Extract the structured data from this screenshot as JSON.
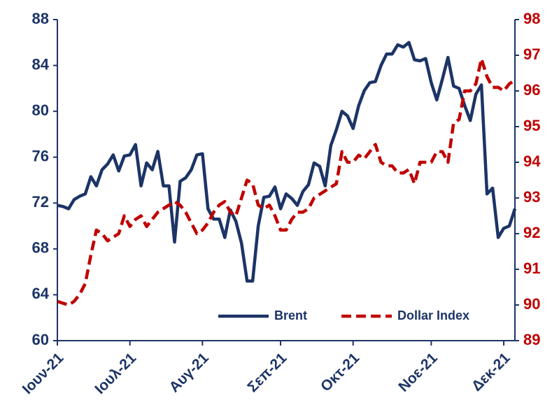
{
  "chart_data": {
    "type": "line",
    "categories": [
      "Ιουν-21",
      null,
      null,
      null,
      null,
      null,
      null,
      null,
      null,
      null,
      null,
      null,
      null,
      "Ιουλ-21",
      null,
      null,
      null,
      null,
      null,
      null,
      null,
      null,
      null,
      null,
      null,
      null,
      "Αυγ-21",
      null,
      null,
      null,
      null,
      null,
      null,
      null,
      null,
      null,
      null,
      null,
      null,
      null,
      "Σεπ-21",
      null,
      null,
      null,
      null,
      null,
      null,
      null,
      null,
      null,
      null,
      null,
      null,
      "Οκτ-21",
      null,
      null,
      null,
      null,
      null,
      null,
      null,
      null,
      null,
      null,
      null,
      null,
      null,
      "Νοε-21",
      null,
      null,
      null,
      null,
      null,
      null,
      null,
      null,
      null,
      null,
      null,
      null,
      "Δεκ-21",
      null,
      null
    ],
    "series": [
      {
        "name": "Brent",
        "color": "#1c3466",
        "dash": false,
        "values": [
          71.8,
          71.7,
          71.5,
          72.3,
          72.6,
          72.8,
          74.3,
          73.5,
          74.9,
          75.4,
          76.2,
          74.8,
          76.1,
          76.2,
          77.1,
          73.5,
          75.5,
          74.9,
          76.5,
          73.5,
          73.5,
          68.6,
          73.9,
          74.2,
          74.9,
          76.2,
          76.3,
          71.5,
          70.6,
          70.6,
          69.0,
          71.4,
          70.4,
          68.5,
          65.2,
          65.2,
          70.0,
          72.5,
          72.6,
          73.4,
          71.5,
          72.8,
          72.4,
          71.8,
          73,
          73.6,
          75.5,
          75.2,
          73.5,
          77,
          78.4,
          80,
          79.6,
          78.5,
          80.5,
          81.8,
          82.5,
          82.6,
          84,
          85,
          85,
          85.8,
          85.6,
          86,
          84.5,
          84.4,
          84.6,
          82.5,
          81,
          82.8,
          84.7,
          82.2,
          82,
          80.5,
          79.2,
          81.5,
          82.3,
          72.8,
          73.3,
          69,
          69.8,
          70,
          71.5
        ]
      },
      {
        "name": "Dollar Index",
        "color": "#c00000",
        "dash": true,
        "axis": "y2",
        "values": [
          90.1,
          90.05,
          90,
          90.1,
          90.3,
          90.6,
          91.4,
          92.1,
          92,
          91.8,
          91.9,
          92,
          92.5,
          92.2,
          92.4,
          92.5,
          92.2,
          92.4,
          92.6,
          92.7,
          92.8,
          92.9,
          92.8,
          92.6,
          92.3,
          92,
          92.1,
          92.3,
          92.6,
          92.8,
          92.9,
          92.6,
          92.5,
          93,
          93.5,
          93.4,
          92.8,
          92.7,
          92.8,
          92.5,
          92.1,
          92.1,
          92.4,
          92.6,
          92.6,
          92.7,
          93,
          93.1,
          93.2,
          93.3,
          93.4,
          94.3,
          94,
          94,
          94.2,
          94.1,
          94.3,
          94.5,
          94,
          93.9,
          93.9,
          93.7,
          93.7,
          93.8,
          93.4,
          94,
          94,
          94,
          94.3,
          94.3,
          94,
          95.1,
          95.2,
          96,
          96,
          96.2,
          96.9,
          96.4,
          96.1,
          96.1,
          96,
          96.2,
          96.3
        ]
      }
    ],
    "ylim": [
      60,
      88
    ],
    "yticks": [
      60,
      64,
      68,
      72,
      76,
      80,
      84,
      88
    ],
    "ytick_color": "#1c3466",
    "y2lim": [
      89,
      98
    ],
    "y2ticks": [
      89,
      90,
      91,
      92,
      93,
      94,
      95,
      96,
      97,
      98
    ],
    "y2tick_color": "#c00000",
    "grid": false,
    "legend": "lower right"
  }
}
